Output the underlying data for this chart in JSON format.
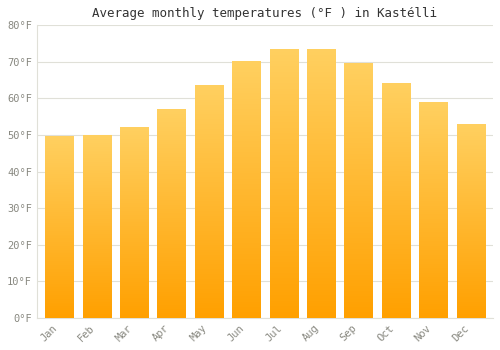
{
  "title": "Average monthly temperatures (°F ) in Kastélli",
  "months": [
    "Jan",
    "Feb",
    "Mar",
    "Apr",
    "May",
    "Jun",
    "Jul",
    "Aug",
    "Sep",
    "Oct",
    "Nov",
    "Dec"
  ],
  "values": [
    49.5,
    50.0,
    52.0,
    57.0,
    63.5,
    70.0,
    73.5,
    73.5,
    69.5,
    64.0,
    59.0,
    53.0
  ],
  "bar_color_top": "#FFB300",
  "bar_color_bottom": "#FFA000",
  "bar_color_light": "#FFD060",
  "background_color": "#FFFFFF",
  "grid_color": "#E0E0D8",
  "tick_label_color": "#888880",
  "title_color": "#333333",
  "ylim": [
    0,
    80
  ],
  "ytick_step": 10,
  "figsize": [
    5.0,
    3.5
  ],
  "dpi": 100
}
